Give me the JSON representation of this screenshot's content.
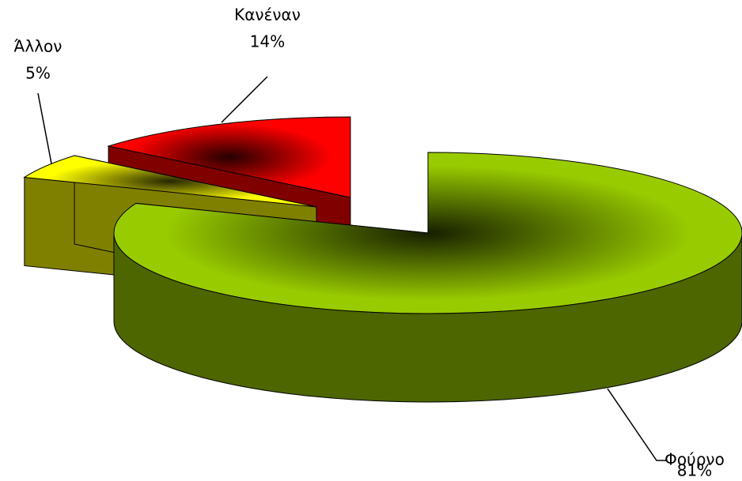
{
  "chart_data": {
    "type": "pie",
    "categories": [
      "Φούρνο",
      "Άλλον",
      "Κανέναν"
    ],
    "values": [
      81,
      5,
      14
    ],
    "value_labels": [
      "81%",
      "5%",
      "14%"
    ],
    "colors": [
      "#99cc00",
      "#ffff00",
      "#ff0000"
    ]
  }
}
